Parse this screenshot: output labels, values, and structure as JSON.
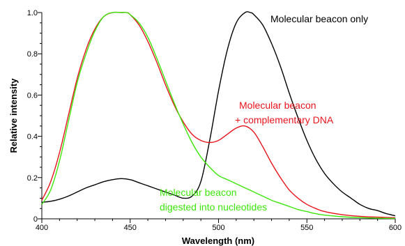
{
  "chart_data": {
    "type": "line",
    "xlabel": "Wavelength (nm)",
    "ylabel": "Relative intensity",
    "xlim": [
      400,
      600
    ],
    "ylim": [
      0,
      1.0
    ],
    "x_ticks": [
      "400",
      "450",
      "500",
      "550",
      "600"
    ],
    "y_ticks": [
      "0",
      "0.2",
      "0.4",
      "0.6",
      "0.8",
      "1.0"
    ],
    "grid": false,
    "legend": "none",
    "series": [
      {
        "color": "#000000",
        "x": [
          400,
          405,
          410,
          415,
          420,
          425,
          430,
          435,
          440,
          445,
          450,
          455,
          460,
          465,
          470,
          475,
          480,
          485,
          490,
          495,
          500,
          505,
          510,
          515,
          518,
          520,
          525,
          530,
          535,
          540,
          545,
          550,
          555,
          560,
          565,
          570,
          575,
          580,
          585,
          590,
          595,
          600
        ],
        "y": [
          0.08,
          0.085,
          0.095,
          0.11,
          0.13,
          0.15,
          0.165,
          0.18,
          0.19,
          0.195,
          0.19,
          0.175,
          0.16,
          0.145,
          0.13,
          0.115,
          0.1,
          0.11,
          0.18,
          0.38,
          0.62,
          0.82,
          0.95,
          1.0,
          1.0,
          0.99,
          0.94,
          0.85,
          0.74,
          0.61,
          0.49,
          0.38,
          0.29,
          0.22,
          0.17,
          0.13,
          0.1,
          0.07,
          0.05,
          0.04,
          0.025,
          0.015
        ]
      },
      {
        "color": "#e8141c",
        "x": [
          400,
          405,
          410,
          415,
          420,
          425,
          430,
          435,
          440,
          445,
          448,
          450,
          455,
          460,
          465,
          470,
          475,
          480,
          485,
          490,
          495,
          500,
          505,
          510,
          515,
          520,
          525,
          530,
          535,
          540,
          545,
          550,
          555,
          560,
          570,
          580,
          590,
          600
        ],
        "y": [
          0.09,
          0.18,
          0.32,
          0.5,
          0.68,
          0.82,
          0.92,
          0.98,
          1.0,
          1.0,
          1.0,
          0.99,
          0.94,
          0.86,
          0.76,
          0.65,
          0.55,
          0.47,
          0.41,
          0.38,
          0.37,
          0.38,
          0.41,
          0.44,
          0.45,
          0.42,
          0.35,
          0.27,
          0.2,
          0.14,
          0.1,
          0.07,
          0.05,
          0.035,
          0.02,
          0.012,
          0.008,
          0.005
        ]
      },
      {
        "color": "#3ce60a",
        "x": [
          400,
          405,
          410,
          415,
          420,
          425,
          430,
          435,
          440,
          445,
          448,
          450,
          455,
          460,
          465,
          470,
          475,
          480,
          485,
          490,
          495,
          500,
          505,
          510,
          515,
          520,
          525,
          530,
          535,
          540,
          545,
          550,
          555,
          560,
          570,
          580,
          590,
          600
        ],
        "y": [
          0.07,
          0.14,
          0.28,
          0.47,
          0.66,
          0.8,
          0.91,
          0.98,
          1.0,
          1.0,
          1.0,
          0.99,
          0.95,
          0.88,
          0.78,
          0.67,
          0.56,
          0.46,
          0.37,
          0.3,
          0.25,
          0.21,
          0.19,
          0.17,
          0.15,
          0.13,
          0.11,
          0.09,
          0.075,
          0.06,
          0.045,
          0.035,
          0.025,
          0.018,
          0.01,
          0.006,
          0.003,
          0.002
        ]
      }
    ],
    "annotations": [
      {
        "text": "Molecular beacon only",
        "color": "#000000"
      },
      {
        "text": "Molecular beacon",
        "color": "#e8141c"
      },
      {
        "text": "+ complementary DNA",
        "color": "#e8141c"
      },
      {
        "text": "Molecular beacon",
        "color": "#3ce60a"
      },
      {
        "text": "digested into nucleotides",
        "color": "#3ce60a"
      }
    ]
  }
}
